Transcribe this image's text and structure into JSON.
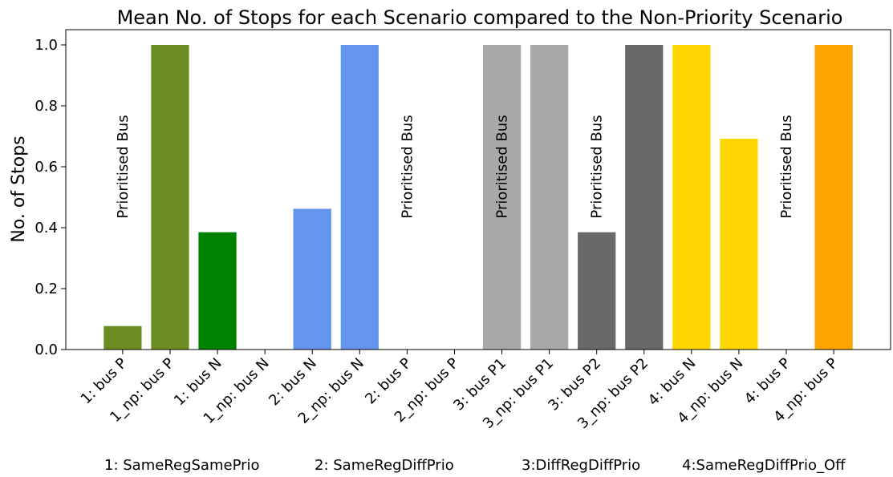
{
  "chart_data": {
    "type": "bar",
    "title": "Mean No. of Stops for each Scenario compared to the Non-Priority Scenario",
    "y_label": "No. of Stops",
    "categories": [
      "1: bus P",
      "1_np: bus P",
      "1: bus N",
      "1_np: bus N",
      "2: bus N",
      "2_np: bus N",
      "2: bus P",
      "2_np: bus P",
      "3: bus P1",
      "3_np: bus P1",
      "3: bus P2",
      "3_np: bus P2",
      "4: bus N",
      "4_np: bus N",
      "4: bus P",
      "4_np: bus P"
    ],
    "values": [
      0.077,
      1.0,
      0.385,
      0,
      0.462,
      1.0,
      0,
      0,
      1.0,
      1.0,
      0.385,
      1.0,
      1.0,
      0.692,
      0,
      1.0
    ],
    "colors": [
      "#6b8e23",
      "#6b8e23",
      "#008000",
      "#008000",
      "#6495ed",
      "#6495ed",
      "#6495ed",
      "#6495ed",
      "#a9a9a9",
      "#a9a9a9",
      "#696969",
      "#696969",
      "#ffd700",
      "#ffd700",
      "#ffa500",
      "#ffa500"
    ],
    "ylim": [
      0,
      1.05
    ],
    "yticks": [
      {
        "value": 0,
        "label": "0.0"
      },
      0.2,
      0.4,
      0.6,
      0.8,
      {
        "value": 1,
        "label": "1.0"
      }
    ],
    "annotations": [
      {
        "text": "Prioritised Bus",
        "category": "1: bus P"
      },
      {
        "text": "Prioritised Bus",
        "category": "2: bus P"
      },
      {
        "text": "Prioritised Bus",
        "category": "3: bus P1"
      },
      {
        "text": "Prioritised Bus",
        "category": "3: bus P2"
      },
      {
        "text": "Prioritised Bus",
        "category": "4: bus P"
      }
    ],
    "footnotes": [
      "1: SameRegSamePrio",
      "2: SameRegDiffPrio",
      "3:DiffRegDiffPrio",
      "4:SameRegDiffPrio_Off"
    ]
  }
}
